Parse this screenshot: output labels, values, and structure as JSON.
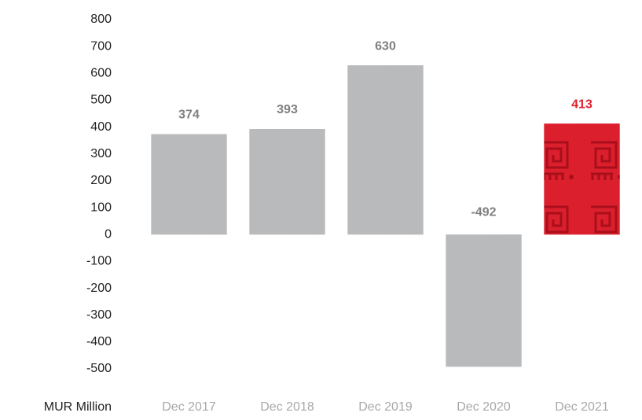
{
  "chart_data": {
    "type": "bar",
    "y_axis_label": "MUR Million",
    "categories": [
      "Dec 2017",
      "Dec 2018",
      "Dec 2019",
      "Dec 2020",
      "Dec 2021"
    ],
    "values": [
      374,
      393,
      630,
      -492,
      413
    ],
    "colors": [
      "#b9babc",
      "#b9babc",
      "#b9babc",
      "#b9babc",
      "#dc1f2d"
    ],
    "label_colors": [
      "#808080",
      "#808080",
      "#808080",
      "#808080",
      "#e0202e"
    ],
    "patterned": [
      false,
      false,
      false,
      false,
      true
    ],
    "ylim": [
      -500,
      800
    ],
    "yticks": [
      -500,
      -400,
      -300,
      -200,
      -100,
      0,
      100,
      200,
      300,
      400,
      500,
      600,
      700,
      800
    ],
    "grid": false
  }
}
